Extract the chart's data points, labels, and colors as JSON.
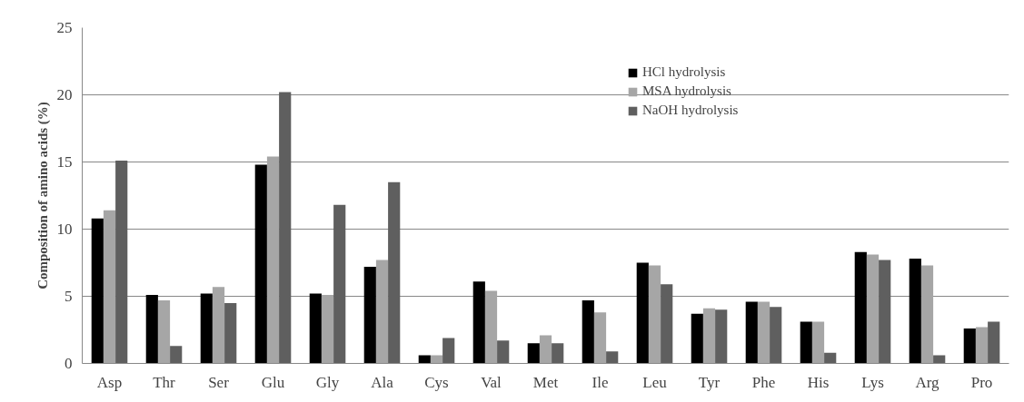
{
  "chart_data": {
    "type": "bar",
    "ylabel": "Composition of amino acids (%)",
    "categories": [
      "Asp",
      "Thr",
      "Ser",
      "Glu",
      "Gly",
      "Ala",
      "Cys",
      "Val",
      "Met",
      "Ile",
      "Leu",
      "Tyr",
      "Phe",
      "His",
      "Lys",
      "Arg",
      "Pro"
    ],
    "series": [
      {
        "name": "HCl hydrolysis",
        "color": "#000000",
        "values": [
          10.8,
          5.1,
          5.2,
          14.8,
          5.2,
          7.2,
          0.6,
          6.1,
          1.5,
          4.7,
          7.5,
          3.7,
          4.6,
          3.1,
          8.3,
          7.8,
          2.6
        ]
      },
      {
        "name": "MSA hydrolysis",
        "color": "#a6a6a6",
        "values": [
          11.4,
          4.7,
          5.7,
          15.4,
          5.1,
          7.7,
          0.6,
          5.4,
          2.1,
          3.8,
          7.3,
          4.1,
          4.6,
          3.1,
          8.1,
          7.3,
          2.7
        ]
      },
      {
        "name": "NaOH hydrolysis",
        "color": "#5f5f5f",
        "values": [
          15.1,
          1.3,
          4.5,
          20.2,
          11.8,
          13.5,
          1.9,
          1.7,
          1.5,
          0.9,
          5.9,
          4.0,
          4.2,
          0.8,
          7.7,
          0.6,
          3.1
        ]
      }
    ],
    "ylim": [
      0,
      25
    ],
    "yticks": [
      0,
      5,
      10,
      15,
      20,
      25
    ],
    "grid": "y",
    "legend": "top right"
  }
}
